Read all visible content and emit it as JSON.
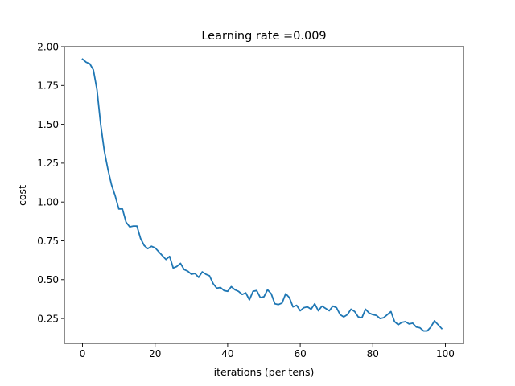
{
  "chart_data": {
    "type": "line",
    "title": "Learning rate =0.009",
    "xlabel": "iterations (per tens)",
    "ylabel": "cost",
    "xlim": [
      -5,
      105
    ],
    "ylim": [
      0.09,
      2.0
    ],
    "xticks": [
      0,
      20,
      40,
      60,
      80,
      100
    ],
    "yticks": [
      0.25,
      0.5,
      0.75,
      1.0,
      1.25,
      1.5,
      1.75,
      2.0
    ],
    "xtick_labels": [
      "0",
      "20",
      "40",
      "60",
      "80",
      "100"
    ],
    "ytick_labels": [
      "0.25",
      "0.50",
      "0.75",
      "1.00",
      "1.25",
      "1.50",
      "1.75",
      "2.00"
    ],
    "grid": false,
    "colors": {
      "series": "#1f77b4",
      "axes": "#000000",
      "background": "#ffffff"
    },
    "series": [
      {
        "x": [
          0,
          1,
          2,
          3,
          4,
          5,
          6,
          7,
          8,
          9,
          10,
          11,
          12,
          13,
          14,
          15,
          16,
          17,
          18,
          19,
          20,
          21,
          22,
          23,
          24,
          25,
          26,
          27,
          28,
          29,
          30,
          31,
          32,
          33,
          34,
          35,
          36,
          37,
          38,
          39,
          40,
          41,
          42,
          43,
          44,
          45,
          46,
          47,
          48,
          49,
          50,
          51,
          52,
          53,
          54,
          55,
          56,
          57,
          58,
          59,
          60,
          61,
          62,
          63,
          64,
          65,
          66,
          67,
          68,
          69,
          70,
          71,
          72,
          73,
          74,
          75,
          76,
          77,
          78,
          79,
          80,
          81,
          82,
          83,
          84,
          85,
          86,
          87,
          88,
          89,
          90,
          91,
          92,
          93,
          94,
          95,
          96,
          97,
          98,
          99
        ],
        "y": [
          1.92,
          1.9,
          1.89,
          1.85,
          1.72,
          1.5,
          1.33,
          1.21,
          1.11,
          1.04,
          0.955,
          0.955,
          0.87,
          0.84,
          0.845,
          0.845,
          0.765,
          0.72,
          0.7,
          0.715,
          0.705,
          0.68,
          0.655,
          0.63,
          0.65,
          0.575,
          0.585,
          0.605,
          0.565,
          0.555,
          0.535,
          0.54,
          0.515,
          0.55,
          0.535,
          0.525,
          0.475,
          0.445,
          0.45,
          0.43,
          0.425,
          0.455,
          0.435,
          0.425,
          0.405,
          0.415,
          0.37,
          0.425,
          0.43,
          0.385,
          0.39,
          0.435,
          0.41,
          0.345,
          0.34,
          0.35,
          0.41,
          0.385,
          0.325,
          0.335,
          0.3,
          0.32,
          0.325,
          0.31,
          0.345,
          0.3,
          0.33,
          0.315,
          0.3,
          0.33,
          0.32,
          0.275,
          0.26,
          0.275,
          0.31,
          0.295,
          0.26,
          0.255,
          0.31,
          0.285,
          0.275,
          0.27,
          0.25,
          0.255,
          0.275,
          0.295,
          0.23,
          0.21,
          0.225,
          0.23,
          0.215,
          0.22,
          0.195,
          0.19,
          0.17,
          0.17,
          0.195,
          0.235,
          0.21,
          0.185
        ]
      }
    ]
  }
}
